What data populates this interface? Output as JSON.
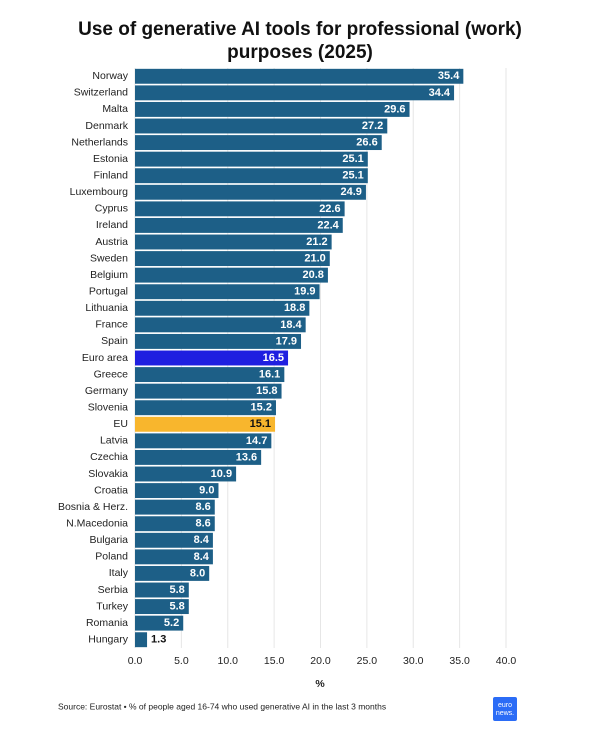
{
  "chart_data": {
    "type": "barh",
    "title": "Use of generative AI tools for professional (work) purposes (2025)",
    "categories": [
      "Norway",
      "Switzerland",
      "Malta",
      "Denmark",
      "Netherlands",
      "Estonia",
      "Finland",
      "Luxembourg",
      "Cyprus",
      "Ireland",
      "Austria",
      "Sweden",
      "Belgium",
      "Portugal",
      "Lithuania",
      "France",
      "Spain",
      "Euro area",
      "Greece",
      "Germany",
      "Slovenia",
      "EU",
      "Latvia",
      "Czechia",
      "Slovakia",
      "Croatia",
      "Bosnia & Herz.",
      "N.Macedonia",
      "Bulgaria",
      "Poland",
      "Italy",
      "Serbia",
      "Turkey",
      "Romania",
      "Hungary"
    ],
    "values": [
      35.4,
      34.4,
      29.6,
      27.2,
      26.6,
      25.1,
      25.1,
      24.9,
      22.6,
      22.4,
      21.2,
      21.0,
      20.8,
      19.9,
      18.8,
      18.4,
      17.9,
      16.5,
      16.1,
      15.8,
      15.2,
      15.1,
      14.7,
      13.6,
      10.9,
      9.0,
      8.6,
      8.6,
      8.4,
      8.4,
      8.0,
      5.8,
      5.8,
      5.2,
      1.3
    ],
    "value_labels": [
      "35.4",
      "34.4",
      "29.6",
      "27.2",
      "26.6",
      "25.1",
      "25.1",
      "24.9",
      "22.6",
      "22.4",
      "21.2",
      "21.0",
      "20.8",
      "19.9",
      "18.8",
      "18.4",
      "17.9",
      "16.5",
      "16.1",
      "15.8",
      "15.2",
      "15.1",
      "14.7",
      "13.6",
      "10.9",
      "9.0",
      "8.6",
      "8.6",
      "8.4",
      "8.4",
      "8.0",
      "5.8",
      "5.8",
      "5.2",
      "1.3"
    ],
    "colors": [
      "#1d5f87",
      "#1d5f87",
      "#1d5f87",
      "#1d5f87",
      "#1d5f87",
      "#1d5f87",
      "#1d5f87",
      "#1d5f87",
      "#1d5f87",
      "#1d5f87",
      "#1d5f87",
      "#1d5f87",
      "#1d5f87",
      "#1d5f87",
      "#1d5f87",
      "#1d5f87",
      "#1d5f87",
      "#1f1fe0",
      "#1d5f87",
      "#1d5f87",
      "#1d5f87",
      "#f8b62d",
      "#1d5f87",
      "#1d5f87",
      "#1d5f87",
      "#1d5f87",
      "#1d5f87",
      "#1d5f87",
      "#1d5f87",
      "#1d5f87",
      "#1d5f87",
      "#1d5f87",
      "#1d5f87",
      "#1d5f87",
      "#1d5f87"
    ],
    "xlim": [
      0,
      40
    ],
    "xticks": [
      {
        "value": 0,
        "label": "0.0"
      },
      {
        "value": 5,
        "label": "5.0"
      },
      {
        "value": 10,
        "label": "10.0"
      },
      {
        "value": 15,
        "label": "15.0"
      },
      {
        "value": 20,
        "label": "20.0"
      },
      {
        "value": 25,
        "label": "25.0"
      },
      {
        "value": 30,
        "label": "30.0"
      },
      {
        "value": 35,
        "label": "35.0"
      },
      {
        "value": 40,
        "label": "40.0"
      }
    ],
    "xlabel": "%",
    "grid": true,
    "source": "Source: Eurostat • % of people aged 16-74 who used generative AI in the last 3 months",
    "logo": [
      "euro",
      "news."
    ]
  }
}
